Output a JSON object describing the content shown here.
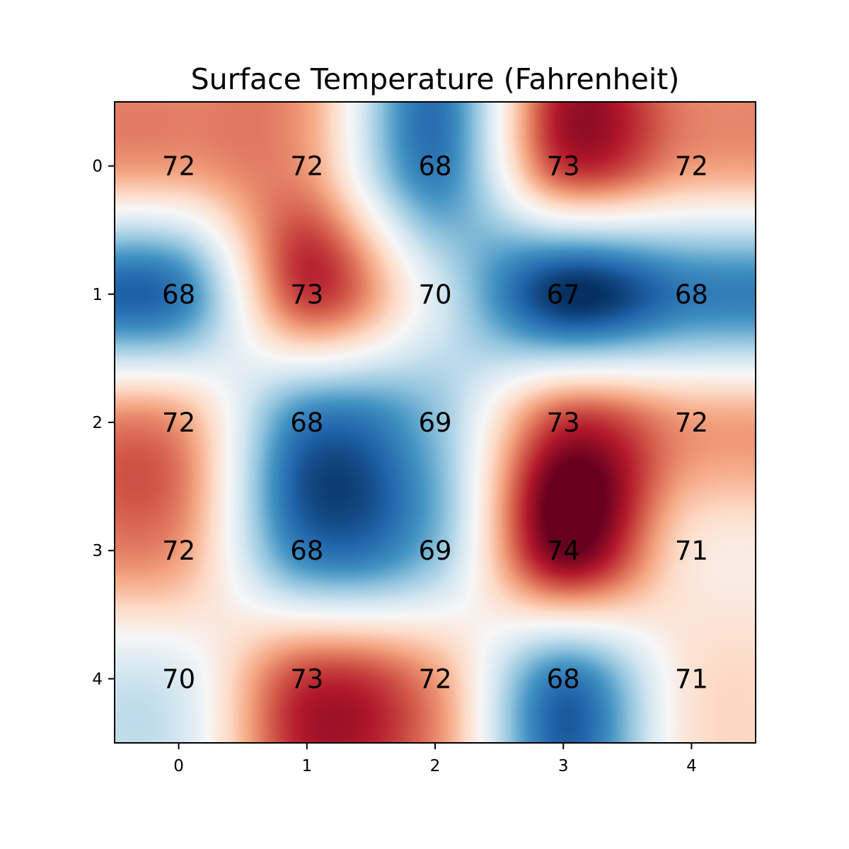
{
  "chart_data": {
    "type": "heatmap",
    "title": "Surface Temperature (Fahrenheit)",
    "xlabel": "",
    "ylabel": "",
    "x_ticks": [
      "0",
      "1",
      "2",
      "3",
      "4"
    ],
    "y_ticks": [
      "0",
      "1",
      "2",
      "3",
      "4"
    ],
    "xlim": [
      -0.5,
      4.5
    ],
    "ylim": [
      4.5,
      -0.5
    ],
    "colormap": "RdBu_r",
    "interpolation": "bicubic",
    "vmin": 67,
    "vmax": 74,
    "grid": false,
    "values": [
      [
        72,
        72,
        68,
        73,
        72
      ],
      [
        68,
        73,
        70,
        67,
        68
      ],
      [
        72,
        68,
        69,
        73,
        72
      ],
      [
        72,
        68,
        69,
        74,
        71
      ],
      [
        70,
        73,
        72,
        68,
        71
      ]
    ],
    "annotations": "value printed at the center of each cell"
  }
}
